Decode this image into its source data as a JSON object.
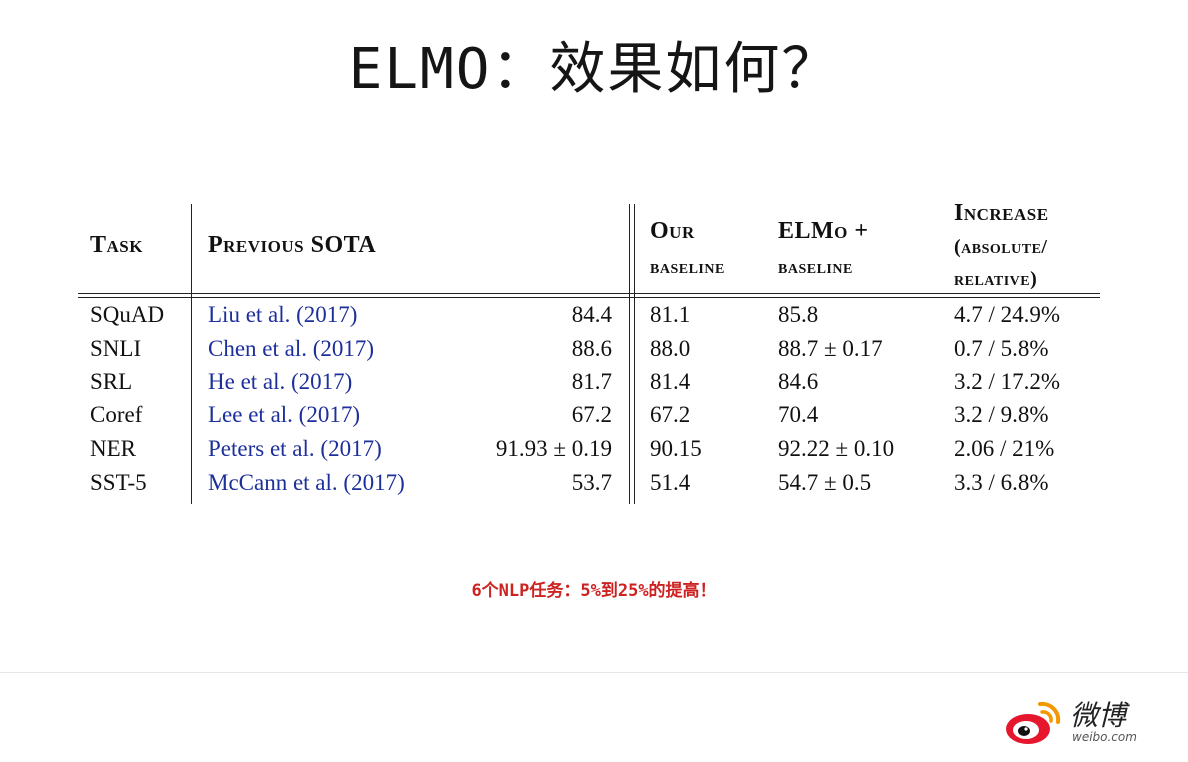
{
  "slide": {
    "title": "ELMO：效果如何？",
    "note": "6个NLP任务：5%到25%的提高！"
  },
  "table": {
    "headers": {
      "task": "Task",
      "prev_sota": "Previous SOTA",
      "our_baseline_1": "Our",
      "our_baseline_2": "baseline",
      "elmo_baseline_1": "ELMo +",
      "elmo_baseline_2": "baseline",
      "increase_1": "Increase",
      "increase_2": "(absolute/",
      "increase_3": "relative)"
    },
    "rows": [
      {
        "task": "SQuAD",
        "ref": "Liu et al. (2017)",
        "sota": "84.4",
        "baseline": "81.1",
        "elmo": "85.8",
        "increase": "4.7 / 24.9%"
      },
      {
        "task": "SNLI",
        "ref": "Chen et al. (2017)",
        "sota": "88.6",
        "baseline": "88.0",
        "elmo": "88.7 ± 0.17",
        "increase": "0.7 / 5.8%"
      },
      {
        "task": "SRL",
        "ref": "He et al. (2017)",
        "sota": "81.7",
        "baseline": "81.4",
        "elmo": "84.6",
        "increase": "3.2 / 17.2%"
      },
      {
        "task": "Coref",
        "ref": "Lee et al. (2017)",
        "sota": "67.2",
        "baseline": "67.2",
        "elmo": "70.4",
        "increase": "3.2 / 9.8%"
      },
      {
        "task": "NER",
        "ref": "Peters et al. (2017)",
        "sota": "91.93 ± 0.19",
        "baseline": "90.15",
        "elmo": "92.22 ± 0.10",
        "increase": "2.06 / 21%"
      },
      {
        "task": "SST-5",
        "ref": "McCann et al. (2017)",
        "sota": "53.7",
        "baseline": "51.4",
        "elmo": "54.7 ± 0.5",
        "increase": "3.3 / 6.8%"
      }
    ]
  },
  "watermark": {
    "brand": "微博",
    "url": "weibo.com",
    "icon": "weibo-logo-icon"
  },
  "colors": {
    "link": "#1d2f9a",
    "note": "#cc2222"
  }
}
